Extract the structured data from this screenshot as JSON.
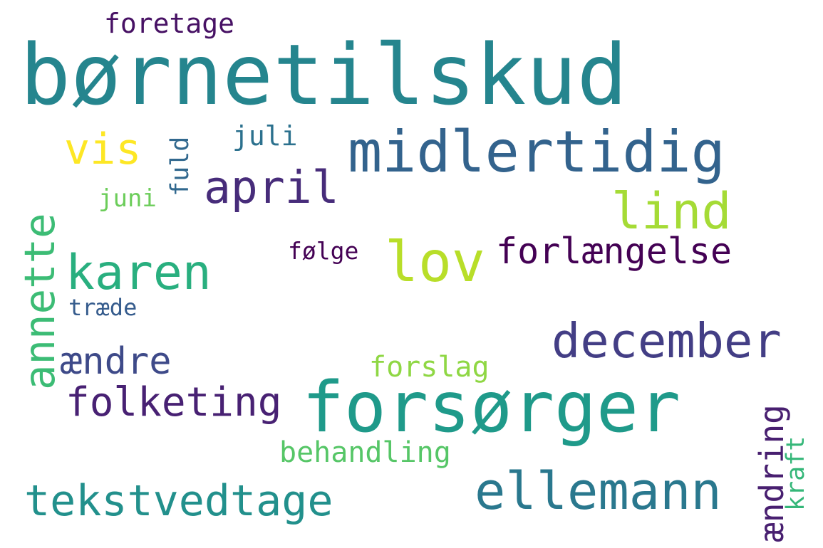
{
  "words": [
    {
      "text": "børnetilskud",
      "color": "#25858e"
    },
    {
      "text": "forsørger",
      "color": "#1f9a8a"
    },
    {
      "text": "midlertidig",
      "color": "#33638d"
    },
    {
      "text": "ellemann",
      "color": "#2a788e"
    },
    {
      "text": "december",
      "color": "#433e85"
    },
    {
      "text": "tekstvedtage",
      "color": "#22908c"
    },
    {
      "text": "lov",
      "color": "#b8de29"
    },
    {
      "text": "karen",
      "color": "#29af7f"
    },
    {
      "text": "april",
      "color": "#472c7a"
    },
    {
      "text": "lind",
      "color": "#a5db36"
    },
    {
      "text": "annette",
      "color": "#3cbc75"
    },
    {
      "text": "forlængelse",
      "color": "#440154"
    },
    {
      "text": "folketing",
      "color": "#482173"
    },
    {
      "text": "ændre",
      "color": "#3e4a89"
    },
    {
      "text": "vis",
      "color": "#fde725"
    },
    {
      "text": "ændring",
      "color": "#481f70"
    },
    {
      "text": "juli",
      "color": "#2c718e"
    },
    {
      "text": "foretage",
      "color": "#471164"
    },
    {
      "text": "forslag",
      "color": "#8fd744"
    },
    {
      "text": "behandling",
      "color": "#56c667"
    },
    {
      "text": "følge",
      "color": "#440154"
    },
    {
      "text": "kraft",
      "color": "#35b779"
    },
    {
      "text": "juni",
      "color": "#6ccd5a"
    },
    {
      "text": "fuld",
      "color": "#31688e"
    },
    {
      "text": "træde",
      "color": "#365c8d"
    }
  ]
}
